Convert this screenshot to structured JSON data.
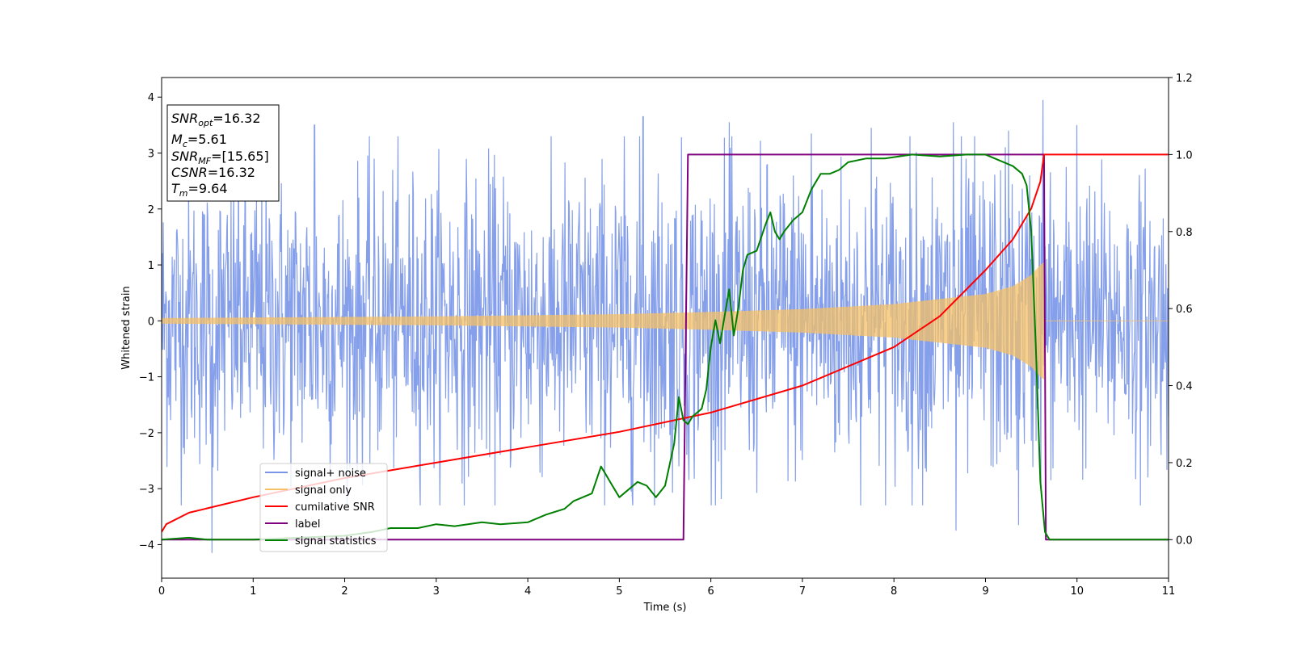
{
  "chart_data": {
    "type": "line",
    "xlabel": "Time (s)",
    "ylabel": "Whitened strain",
    "xlim": [
      0,
      11
    ],
    "ylim": [
      -4.6,
      4.35
    ],
    "y2lim": [
      -0.1,
      1.2
    ],
    "xticks": [
      "0",
      "1",
      "2",
      "3",
      "4",
      "5",
      "6",
      "7",
      "8",
      "9",
      "10",
      "11"
    ],
    "yticks": [
      "−4",
      "−3",
      "−2",
      "−1",
      "0",
      "1",
      "2",
      "3",
      "4"
    ],
    "y2ticks": [
      "0.0",
      "0.2",
      "0.4",
      "0.6",
      "0.8",
      "1.0",
      "1.2"
    ],
    "grid": false,
    "legend_position": "lower-left",
    "info_box": {
      "snr_opt": {
        "sym": "SNR",
        "sub": "opt",
        "rest": "=16.32"
      },
      "mc": {
        "sym": "M",
        "sub": "c",
        "rest": "=5.61"
      },
      "snr_mf": {
        "sym": "SNR",
        "sub": "MF",
        "rest": "=[15.65]"
      },
      "csnr": {
        "sym": "CSNR",
        "sub": "",
        "rest": "=16.32"
      },
      "tm": {
        "sym": "T",
        "sub": "m",
        "rest": "=9.64"
      }
    },
    "series": [
      {
        "name": "signal+ noise",
        "color": "#7895e8",
        "axis": "left",
        "style": "noise band",
        "envelope": {
          "x": [
            0,
            1,
            2,
            3,
            4,
            5,
            6,
            7,
            8,
            9,
            10,
            11
          ],
          "typical_upper": [
            2.3,
            2.4,
            2.3,
            2.4,
            2.4,
            2.5,
            2.5,
            2.5,
            2.5,
            2.6,
            2.3,
            2.3
          ],
          "typical_lower": [
            -2.3,
            -2.4,
            -2.3,
            -2.4,
            -2.4,
            -2.5,
            -2.5,
            -2.5,
            -2.5,
            -2.6,
            -2.3,
            -2.3
          ]
        },
        "peaks": [
          {
            "x": 0.55,
            "y": -4.15
          },
          {
            "x": 1.67,
            "y": 3.5
          },
          {
            "x": 5.26,
            "y": 3.65
          },
          {
            "x": 6.2,
            "y": 3.55
          },
          {
            "x": 7.1,
            "y": 3.35
          },
          {
            "x": 7.75,
            "y": 3.45
          },
          {
            "x": 8.65,
            "y": 3.55
          },
          {
            "x": 9.36,
            "y": -3.65
          },
          {
            "x": 9.63,
            "y": 3.95
          },
          {
            "x": 10.0,
            "y": 3.5
          },
          {
            "x": 8.68,
            "y": -3.75
          },
          {
            "x": 9.25,
            "y": 3.4
          }
        ]
      },
      {
        "name": "signal only",
        "color": "#f5c065",
        "axis": "left",
        "style": "chirp envelope",
        "envelope": {
          "x": [
            0,
            1,
            2,
            3,
            4,
            5,
            6,
            7,
            8,
            9,
            9.3,
            9.5,
            9.6,
            9.64
          ],
          "amplitude": [
            0.05,
            0.06,
            0.07,
            0.08,
            0.1,
            0.12,
            0.16,
            0.21,
            0.3,
            0.48,
            0.62,
            0.82,
            1.0,
            1.05
          ]
        }
      },
      {
        "name": "cumilative SNR",
        "color": "#ff0000",
        "axis": "right",
        "x": [
          0,
          0.05,
          0.3,
          1,
          2,
          3,
          4,
          5,
          6,
          7,
          8,
          8.5,
          9,
          9.3,
          9.5,
          9.6,
          9.64,
          11
        ],
        "values": [
          0.02,
          0.04,
          0.07,
          0.11,
          0.16,
          0.2,
          0.24,
          0.28,
          0.33,
          0.4,
          0.5,
          0.58,
          0.7,
          0.78,
          0.86,
          0.93,
          1.0,
          1.0
        ]
      },
      {
        "name": "label",
        "color": "#800080",
        "axis": "right",
        "x": [
          0,
          5.7,
          5.75,
          9.64,
          9.66,
          11
        ],
        "values": [
          0,
          0,
          1,
          1,
          0,
          0
        ]
      },
      {
        "name": "signal statistics",
        "color": "#008000",
        "axis": "right",
        "x": [
          0,
          0.3,
          0.5,
          1,
          1.5,
          2,
          2.3,
          2.5,
          2.8,
          3,
          3.2,
          3.5,
          3.7,
          4,
          4.2,
          4.4,
          4.5,
          4.6,
          4.7,
          4.8,
          4.85,
          4.9,
          4.95,
          5.0,
          5.1,
          5.2,
          5.3,
          5.4,
          5.5,
          5.6,
          5.65,
          5.7,
          5.75,
          5.8,
          5.9,
          5.95,
          6.0,
          6.05,
          6.1,
          6.15,
          6.2,
          6.25,
          6.3,
          6.35,
          6.4,
          6.5,
          6.6,
          6.65,
          6.7,
          6.75,
          6.8,
          6.9,
          7.0,
          7.1,
          7.2,
          7.3,
          7.4,
          7.5,
          7.7,
          7.9,
          8.2,
          8.5,
          8.8,
          9.0,
          9.2,
          9.3,
          9.4,
          9.45,
          9.5,
          9.55,
          9.6,
          9.65,
          9.7,
          11
        ],
        "values": [
          0,
          0.005,
          0.0,
          0.0,
          0.005,
          0.01,
          0.02,
          0.03,
          0.03,
          0.04,
          0.035,
          0.045,
          0.04,
          0.045,
          0.065,
          0.08,
          0.1,
          0.11,
          0.12,
          0.19,
          0.17,
          0.15,
          0.13,
          0.11,
          0.13,
          0.15,
          0.14,
          0.11,
          0.14,
          0.25,
          0.37,
          0.31,
          0.3,
          0.32,
          0.34,
          0.39,
          0.5,
          0.57,
          0.51,
          0.58,
          0.65,
          0.53,
          0.6,
          0.7,
          0.74,
          0.75,
          0.82,
          0.85,
          0.8,
          0.78,
          0.8,
          0.83,
          0.85,
          0.91,
          0.95,
          0.95,
          0.96,
          0.98,
          0.99,
          0.99,
          1.0,
          0.995,
          1.0,
          1.0,
          0.98,
          0.97,
          0.95,
          0.92,
          0.8,
          0.5,
          0.15,
          0.02,
          0.0,
          0.0
        ]
      }
    ]
  }
}
